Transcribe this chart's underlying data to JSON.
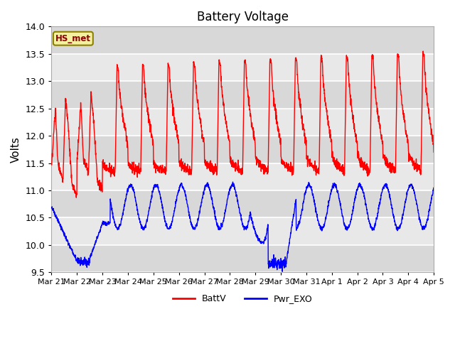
{
  "title": "Battery Voltage",
  "ylabel": "Volts",
  "ylim": [
    9.5,
    14.0
  ],
  "yticks": [
    9.5,
    10.0,
    10.5,
    11.0,
    11.5,
    12.0,
    12.5,
    13.0,
    13.5,
    14.0
  ],
  "legend_labels": [
    "BattV",
    "Pwr_EXO"
  ],
  "legend_colors": [
    "red",
    "blue"
  ],
  "station_label": "HS_met",
  "x_tick_labels": [
    "Mar 21",
    "Mar 22",
    "Mar 23",
    "Mar 24",
    "Mar 25",
    "Mar 26",
    "Mar 27",
    "Mar 28",
    "Mar 29",
    "Mar 30",
    "Mar 31",
    "Apr 1",
    "Apr 2",
    "Apr 3",
    "Apr 4",
    "Apr 5"
  ],
  "band_colors": [
    "#e8e8e8",
    "#d4d4d4"
  ],
  "figsize": [
    6.4,
    4.8
  ],
  "dpi": 100
}
